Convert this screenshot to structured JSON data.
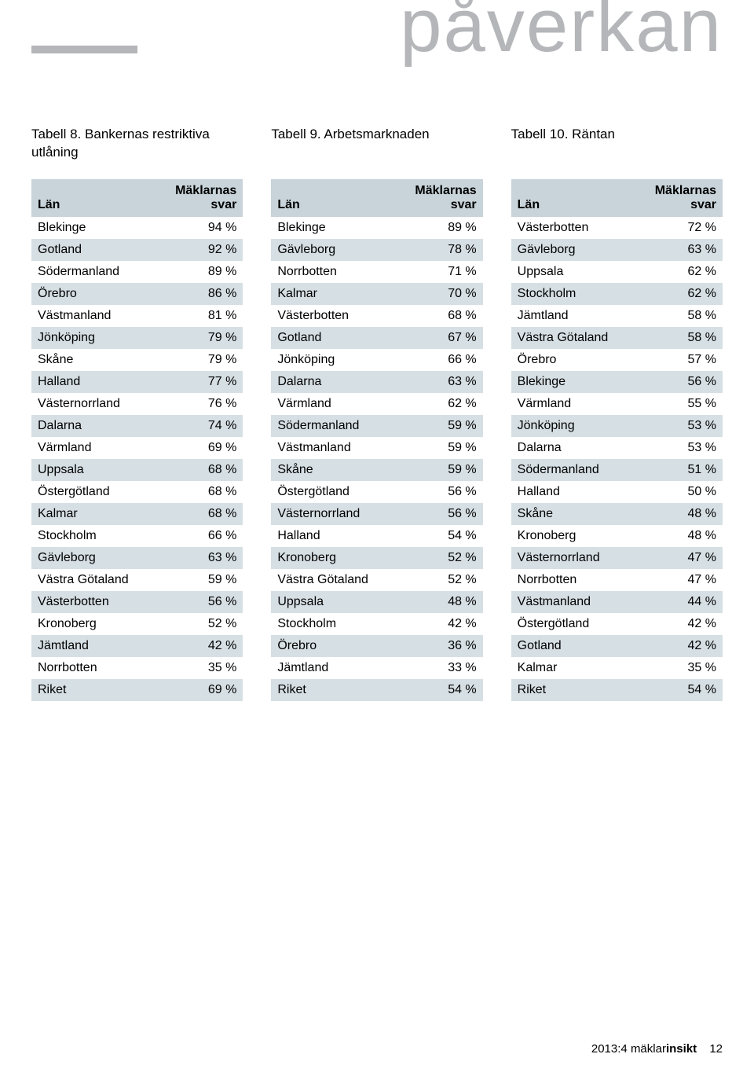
{
  "page_title": "påverkan",
  "footer": {
    "issue": "2013:4",
    "brand1": "mäklar",
    "brand2": "insikt",
    "page_number": "12"
  },
  "tables": [
    {
      "caption": "Tabell 8. Bankernas restriktiva utlåning",
      "col_headers": [
        "Län",
        "Mäklarnas svar"
      ],
      "header_bg": "#c8d4da",
      "stripe_colors": [
        "#ffffff",
        "#d6dfe4"
      ],
      "rows": [
        [
          "Blekinge",
          "94 %"
        ],
        [
          "Gotland",
          "92 %"
        ],
        [
          "Södermanland",
          "89 %"
        ],
        [
          "Örebro",
          "86 %"
        ],
        [
          "Västmanland",
          "81 %"
        ],
        [
          "Jönköping",
          "79 %"
        ],
        [
          "Skåne",
          "79 %"
        ],
        [
          "Halland",
          "77 %"
        ],
        [
          "Västernorrland",
          "76 %"
        ],
        [
          "Dalarna",
          "74 %"
        ],
        [
          "Värmland",
          "69 %"
        ],
        [
          "Uppsala",
          "68 %"
        ],
        [
          "Östergötland",
          "68 %"
        ],
        [
          "Kalmar",
          "68 %"
        ],
        [
          "Stockholm",
          "66 %"
        ],
        [
          "Gävleborg",
          "63 %"
        ],
        [
          "Västra Götaland",
          "59 %"
        ],
        [
          "Västerbotten",
          "56 %"
        ],
        [
          "Kronoberg",
          "52 %"
        ],
        [
          "Jämtland",
          "42 %"
        ],
        [
          "Norrbotten",
          "35 %"
        ],
        [
          "Riket",
          "69 %"
        ]
      ]
    },
    {
      "caption": "Tabell 9. Arbetsmarknaden",
      "col_headers": [
        "Län",
        "Mäklarnas svar"
      ],
      "header_bg": "#c8d4da",
      "stripe_colors": [
        "#ffffff",
        "#d6dfe4"
      ],
      "rows": [
        [
          "Blekinge",
          "89 %"
        ],
        [
          "Gävleborg",
          "78 %"
        ],
        [
          "Norrbotten",
          "71 %"
        ],
        [
          "Kalmar",
          "70 %"
        ],
        [
          "Västerbotten",
          "68 %"
        ],
        [
          "Gotland",
          "67 %"
        ],
        [
          "Jönköping",
          "66 %"
        ],
        [
          "Dalarna",
          "63 %"
        ],
        [
          "Värmland",
          "62 %"
        ],
        [
          "Södermanland",
          "59 %"
        ],
        [
          "Västmanland",
          "59 %"
        ],
        [
          "Skåne",
          "59 %"
        ],
        [
          "Östergötland",
          "56 %"
        ],
        [
          "Västernorrland",
          "56 %"
        ],
        [
          "Halland",
          "54 %"
        ],
        [
          "Kronoberg",
          "52 %"
        ],
        [
          "Västra Götaland",
          "52 %"
        ],
        [
          "Uppsala",
          "48 %"
        ],
        [
          "Stockholm",
          "42 %"
        ],
        [
          "Örebro",
          "36 %"
        ],
        [
          "Jämtland",
          "33 %"
        ],
        [
          "Riket",
          "54 %"
        ]
      ]
    },
    {
      "caption": "Tabell 10. Räntan",
      "col_headers": [
        "Län",
        "Mäklarnas svar"
      ],
      "header_bg": "#c8d4da",
      "stripe_colors": [
        "#ffffff",
        "#d6dfe4"
      ],
      "rows": [
        [
          "Västerbotten",
          "72 %"
        ],
        [
          "Gävleborg",
          "63 %"
        ],
        [
          "Uppsala",
          "62 %"
        ],
        [
          "Stockholm",
          "62 %"
        ],
        [
          "Jämtland",
          "58 %"
        ],
        [
          "Västra Götaland",
          "58 %"
        ],
        [
          "Örebro",
          "57 %"
        ],
        [
          "Blekinge",
          "56 %"
        ],
        [
          "Värmland",
          "55 %"
        ],
        [
          "Jönköping",
          "53 %"
        ],
        [
          "Dalarna",
          "53 %"
        ],
        [
          "Södermanland",
          "51 %"
        ],
        [
          "Halland",
          "50 %"
        ],
        [
          "Skåne",
          "48 %"
        ],
        [
          "Kronoberg",
          "48 %"
        ],
        [
          "Västernorrland",
          "47 %"
        ],
        [
          "Norrbotten",
          "47 %"
        ],
        [
          "Västmanland",
          "44 %"
        ],
        [
          "Östergötland",
          "42 %"
        ],
        [
          "Gotland",
          "42 %"
        ],
        [
          "Kalmar",
          "35 %"
        ],
        [
          "Riket",
          "54 %"
        ]
      ]
    }
  ]
}
